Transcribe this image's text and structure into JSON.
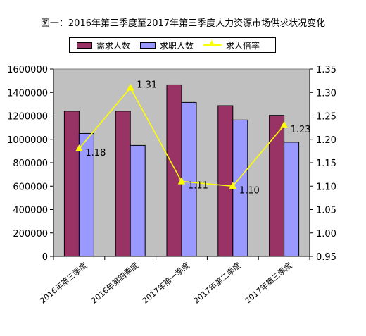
{
  "chart_data": {
    "type": "bar",
    "title": "图一：2016年第三季度至2017年第三季度人力资源市场供求状况变化",
    "categories": [
      "2016年第三季度",
      "2016年第四季度",
      "2017年第一季度",
      "2017年第二季度",
      "2017年第三季度"
    ],
    "series": [
      {
        "name": "需求人数",
        "type": "bar",
        "axis": "left",
        "color": "#993366",
        "values": [
          1240000,
          1240000,
          1465000,
          1287000,
          1205000
        ]
      },
      {
        "name": "求职人数",
        "type": "bar",
        "axis": "left",
        "color": "#9999ff",
        "values": [
          1050000,
          948000,
          1315000,
          1165000,
          975000
        ]
      },
      {
        "name": "求人倍率",
        "type": "line",
        "axis": "right",
        "color": "#ffff00",
        "values": [
          1.18,
          1.31,
          1.11,
          1.1,
          1.23
        ],
        "labels": [
          "1.18",
          "1.31",
          "1.11",
          "1.10",
          "1.23"
        ]
      }
    ],
    "ylim_left": [
      0,
      1600000
    ],
    "yticks_left": [
      0,
      200000,
      400000,
      600000,
      800000,
      1000000,
      1200000,
      1400000,
      1600000
    ],
    "ytick_labels_left": [
      "0",
      "200000",
      "400000",
      "600000",
      "800000",
      "1000000",
      "1200000",
      "1400000",
      "1600000"
    ],
    "ylim_right": [
      0.95,
      1.35
    ],
    "yticks_right": [
      0.95,
      1.0,
      1.05,
      1.1,
      1.15,
      1.2,
      1.25,
      1.3,
      1.35
    ],
    "ytick_labels_right": [
      "0.95",
      "1.00",
      "1.05",
      "1.10",
      "1.15",
      "1.20",
      "1.25",
      "1.30",
      "1.35"
    ],
    "grid": false,
    "legend_position": "top",
    "plot_background": "#c0c0c0"
  }
}
